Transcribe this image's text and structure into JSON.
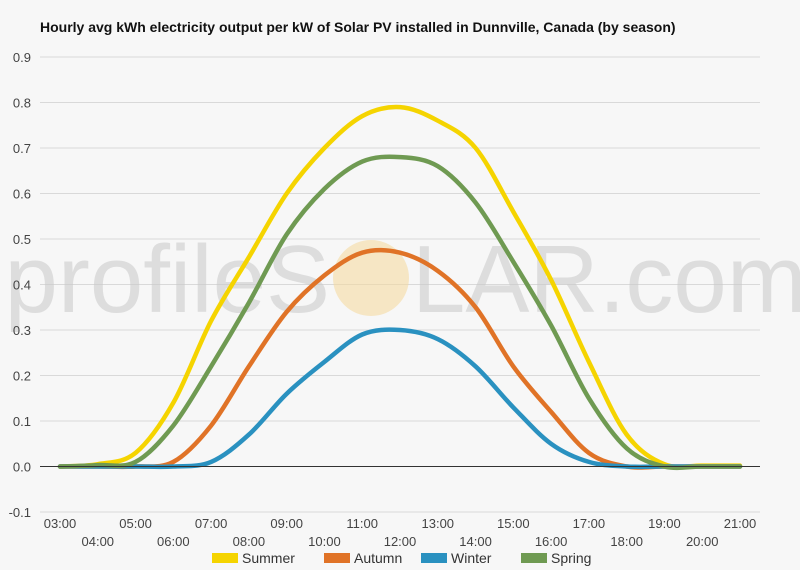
{
  "chart_data": {
    "type": "line",
    "title": "Hourly avg kWh electricity output per kW of Solar PV installed in Dunnville, Canada (by season)",
    "xlabel": "",
    "ylabel": "",
    "x": [
      "03:00",
      "04:00",
      "05:00",
      "06:00",
      "07:00",
      "08:00",
      "09:00",
      "10:00",
      "11:00",
      "12:00",
      "13:00",
      "14:00",
      "15:00",
      "16:00",
      "17:00",
      "18:00",
      "19:00",
      "20:00",
      "21:00"
    ],
    "ylim": [
      -0.1,
      0.9
    ],
    "yticks": [
      "-0.1",
      "0.0",
      "0.1",
      "0.2",
      "0.3",
      "0.4",
      "0.5",
      "0.6",
      "0.7",
      "0.8",
      "0.9"
    ],
    "grid": true,
    "legend_position": "bottom",
    "series": [
      {
        "name": "Summer",
        "color": "#f5d400",
        "values": [
          0.0,
          0.005,
          0.03,
          0.14,
          0.32,
          0.46,
          0.6,
          0.7,
          0.77,
          0.79,
          0.76,
          0.7,
          0.56,
          0.41,
          0.23,
          0.07,
          0.005,
          0.002,
          0.002
        ]
      },
      {
        "name": "Autumn",
        "color": "#e07327",
        "values": [
          0.0,
          0.0,
          0.0,
          0.01,
          0.09,
          0.22,
          0.34,
          0.42,
          0.47,
          0.47,
          0.43,
          0.35,
          0.22,
          0.12,
          0.03,
          0.0,
          0.0,
          0.0,
          0.0
        ]
      },
      {
        "name": "Winter",
        "color": "#2a91c0",
        "values": [
          0.0,
          0.0,
          0.0,
          0.0,
          0.01,
          0.07,
          0.16,
          0.23,
          0.29,
          0.3,
          0.28,
          0.22,
          0.13,
          0.05,
          0.01,
          0.0,
          0.0,
          0.0,
          0.0
        ]
      },
      {
        "name": "Spring",
        "color": "#6f9a52",
        "values": [
          0.0,
          0.003,
          0.01,
          0.09,
          0.22,
          0.36,
          0.51,
          0.61,
          0.67,
          0.68,
          0.66,
          0.58,
          0.45,
          0.31,
          0.15,
          0.04,
          0.0,
          0.0,
          0.0
        ]
      }
    ]
  },
  "watermark": {
    "left": "profileS",
    "sun_letter": "O",
    "right": "LAR.com"
  }
}
